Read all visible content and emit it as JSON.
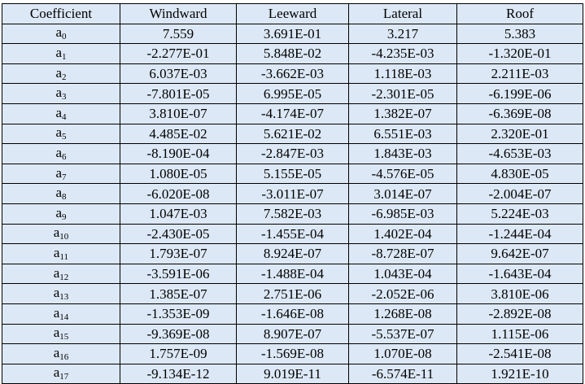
{
  "table": {
    "headers": [
      "Coefficient",
      "Windward",
      "Leeward",
      "Lateral",
      "Roof"
    ],
    "rows": [
      {
        "base": "a",
        "index": "0",
        "values": [
          "7.559",
          "3.691E-01",
          "3.217",
          "5.383"
        ]
      },
      {
        "base": "a",
        "index": "1",
        "values": [
          "-2.277E-01",
          "5.848E-02",
          "-4.235E-03",
          "-1.320E-01"
        ]
      },
      {
        "base": "a",
        "index": "2",
        "values": [
          "6.037E-03",
          "-3.662E-03",
          "1.118E-03",
          "2.211E-03"
        ]
      },
      {
        "base": "a",
        "index": "3",
        "values": [
          "-7.801E-05",
          "6.995E-05",
          "-2.301E-05",
          "-6.199E-06"
        ]
      },
      {
        "base": "a",
        "index": "4",
        "values": [
          "3.810E-07",
          "-4.174E-07",
          "1.382E-07",
          "-6.369E-08"
        ]
      },
      {
        "base": "a",
        "index": "5",
        "values": [
          "4.485E-02",
          "5.621E-02",
          "6.551E-03",
          "2.320E-01"
        ]
      },
      {
        "base": "a",
        "index": "6",
        "values": [
          "-8.190E-04",
          "-2.847E-03",
          "1.843E-03",
          "-4.653E-03"
        ]
      },
      {
        "base": "a",
        "index": "7",
        "values": [
          "1.080E-05",
          "5.155E-05",
          "-4.576E-05",
          "4.830E-05"
        ]
      },
      {
        "base": "a",
        "index": "8",
        "values": [
          "-6.020E-08",
          "-3.011E-07",
          "3.014E-07",
          "-2.004E-07"
        ]
      },
      {
        "base": "a",
        "index": "9",
        "values": [
          "1.047E-03",
          "7.582E-03",
          "-6.985E-03",
          "5.224E-03"
        ]
      },
      {
        "base": "a",
        "index": "10",
        "values": [
          "-2.430E-05",
          "-1.455E-04",
          "1.402E-04",
          "-1.244E-04"
        ]
      },
      {
        "base": "a",
        "index": "11",
        "values": [
          "1.793E-07",
          "8.924E-07",
          "-8.728E-07",
          "9.642E-07"
        ]
      },
      {
        "base": "a",
        "index": "12",
        "values": [
          "-3.591E-06",
          "-1.488E-04",
          "1.043E-04",
          "-1.643E-04"
        ]
      },
      {
        "base": "a",
        "index": "13",
        "values": [
          "1.385E-07",
          "2.751E-06",
          "-2.052E-06",
          "3.810E-06"
        ]
      },
      {
        "base": "a",
        "index": "14",
        "values": [
          "-1.353E-09",
          "-1.646E-08",
          "1.268E-08",
          "-2.892E-08"
        ]
      },
      {
        "base": "a",
        "index": "15",
        "values": [
          "-9.369E-08",
          "8.907E-07",
          "-5.537E-07",
          "1.115E-06"
        ]
      },
      {
        "base": "a",
        "index": "16",
        "values": [
          "1.757E-09",
          "-1.569E-08",
          "1.070E-08",
          "-2.541E-08"
        ]
      },
      {
        "base": "a",
        "index": "17",
        "values": [
          "-9.134E-12",
          "9.019E-11",
          "-6.574E-11",
          "1.921E-10"
        ]
      }
    ]
  },
  "colors": {
    "cell_background": "#dce8f5",
    "border": "#000000",
    "text": "#000000"
  }
}
